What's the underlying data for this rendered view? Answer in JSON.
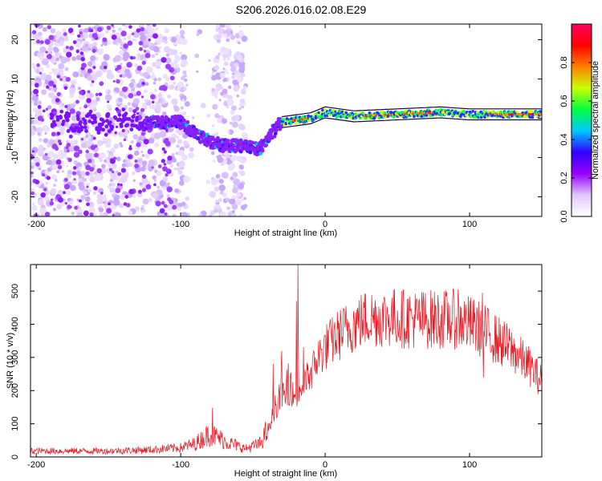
{
  "title": "S206.2026.016.02.08.E29",
  "chart_data": [
    {
      "type": "heatmap",
      "xlabel": "Height of straight line (km)",
      "ylabel": "Frequency (Hz)",
      "xlim": [
        -204,
        150
      ],
      "ylim": [
        -25,
        24
      ],
      "xticks": [
        -200,
        -100,
        0,
        100
      ],
      "yticks": [
        -20,
        -10,
        0,
        10,
        20
      ],
      "xtick_labels": [
        "-200",
        "-100",
        "0",
        "100"
      ],
      "ytick_labels": [
        "-20",
        "-10",
        "0",
        "10",
        "20"
      ],
      "trace": {
        "x": [
          -125,
          -110,
          -100,
          -90,
          -80,
          -70,
          -60,
          -50,
          -45,
          -40,
          -35,
          -30,
          -20,
          -10,
          0,
          20,
          50,
          80,
          100,
          120,
          150
        ],
        "y": [
          -1,
          -1,
          -1,
          -4,
          -6,
          -7,
          -7,
          -7.5,
          -8,
          -5,
          -3,
          -1,
          -0.5,
          0,
          1.5,
          0.5,
          1,
          1.5,
          1,
          1,
          1
        ]
      },
      "colorbar": {
        "label": "Normalized spectral amplitude",
        "range": [
          0,
          1
        ],
        "ticks": [
          0.0,
          0.2,
          0.4,
          0.6,
          0.8
        ],
        "tick_labels": [
          "0.0",
          "0.2",
          "0.4",
          "0.6",
          "0.8"
        ],
        "colors": [
          "#ffffff",
          "#e0c8ff",
          "#9900ff",
          "#3300ff",
          "#00c8ff",
          "#00ff40",
          "#c8ff00",
          "#ff8000",
          "#ff0000",
          "#ff0060"
        ]
      }
    },
    {
      "type": "line",
      "xlabel": "Height of straight line (km)",
      "ylabel": "SNR (10 * v/v)",
      "xlim": [
        -204,
        150
      ],
      "ylim": [
        0,
        580
      ],
      "xticks": [
        -200,
        -100,
        0,
        100
      ],
      "yticks": [
        0,
        100,
        200,
        300,
        400,
        500
      ],
      "xtick_labels": [
        "-200",
        "-100",
        "0",
        "100"
      ],
      "ytick_labels": [
        "0",
        "100",
        "200",
        "300",
        "400",
        "500"
      ],
      "color": "#e8141e",
      "envelope": {
        "x": [
          -204,
          -150,
          -120,
          -100,
          -90,
          -80,
          -75,
          -65,
          -55,
          -45,
          -40,
          -35,
          -30,
          -25,
          -20,
          -15,
          -10,
          -5,
          0,
          10,
          20,
          30,
          40,
          50,
          60,
          70,
          80,
          90,
          100,
          110,
          120,
          130,
          140,
          150
        ],
        "y": [
          18,
          18,
          22,
          28,
          40,
          70,
          60,
          40,
          25,
          40,
          80,
          140,
          180,
          200,
          180,
          220,
          250,
          300,
          330,
          370,
          400,
          420,
          420,
          420,
          415,
          415,
          415,
          415,
          400,
          380,
          350,
          320,
          280,
          230
        ]
      },
      "spikes": [
        {
          "x": -19,
          "y": 580
        },
        {
          "x": -19.8,
          "y": 470
        },
        {
          "x": 92,
          "y": 505
        },
        {
          "x": 109,
          "y": 495
        },
        {
          "x": 109.5,
          "y": 240
        },
        {
          "x": -36,
          "y": 280
        },
        {
          "x": -30,
          "y": 320
        },
        {
          "x": -78,
          "y": 148
        }
      ]
    }
  ]
}
